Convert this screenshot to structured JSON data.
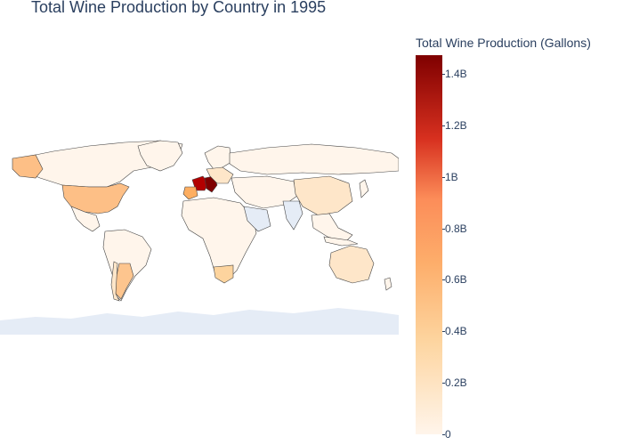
{
  "title": "Total Wine Production by Country in 1995",
  "colorbar": {
    "title": "Total Wine Production (Gallons)",
    "ticks": [
      "0",
      "0.2B",
      "0.4B",
      "0.6B",
      "0.8B",
      "1B",
      "1.2B",
      "1.4B"
    ],
    "max_value": 1470000000,
    "colors": {
      "low": "#fff5eb",
      "mid1": "#fdd49e",
      "mid2": "#fc8d59",
      "mid3": "#d7301f",
      "high": "#7f0000"
    }
  },
  "chart_data": {
    "type": "choropleth",
    "title": "Total Wine Production by Country in 1995",
    "colorbar_label": "Total Wine Production (Gallons)",
    "range": [
      0,
      1470000000
    ],
    "units": "Gallons"
  },
  "colors": {
    "land_nodata": "#e5ecf6",
    "border": "#444444",
    "land_low": "#fff5eb",
    "mid": "#fdd49e",
    "high": "#fcae6b",
    "italy": "#7f0000",
    "france": "#b30000",
    "spain": "#fdae61"
  }
}
